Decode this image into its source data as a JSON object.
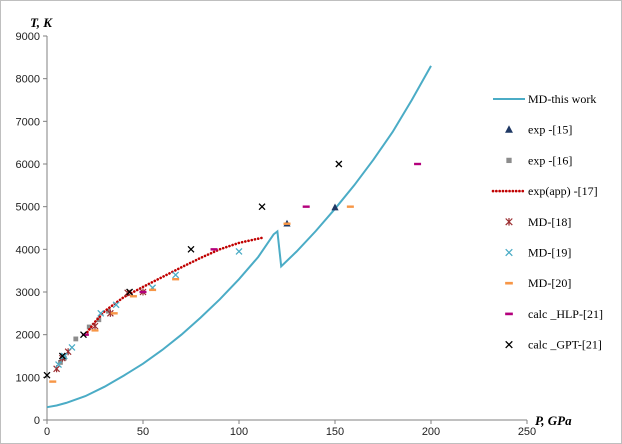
{
  "chart_data": {
    "type": "scatter",
    "xlabel": "P, GPa",
    "ylabel": "T, K",
    "xlim": [
      0,
      250
    ],
    "ylim": [
      0,
      9000
    ],
    "xticks": [
      0,
      50,
      100,
      150,
      200,
      250
    ],
    "yticks": [
      0,
      1000,
      2000,
      3000,
      4000,
      5000,
      6000,
      7000,
      8000,
      9000
    ],
    "grid": false,
    "legend_position": "right",
    "series": [
      {
        "name": "MD-this work",
        "kind": "line",
        "color": "#4bacc6",
        "points": [
          [
            0,
            300
          ],
          [
            5,
            340
          ],
          [
            10,
            400
          ],
          [
            20,
            560
          ],
          [
            30,
            780
          ],
          [
            40,
            1040
          ],
          [
            50,
            1320
          ],
          [
            60,
            1640
          ],
          [
            70,
            2000
          ],
          [
            80,
            2400
          ],
          [
            90,
            2830
          ],
          [
            100,
            3300
          ],
          [
            110,
            3820
          ],
          [
            118,
            4350
          ],
          [
            120,
            4420
          ],
          [
            122,
            3600
          ],
          [
            130,
            3950
          ],
          [
            140,
            4430
          ],
          [
            150,
            4950
          ],
          [
            160,
            5500
          ],
          [
            170,
            6100
          ],
          [
            180,
            6750
          ],
          [
            190,
            7500
          ],
          [
            200,
            8300
          ]
        ]
      },
      {
        "name": "exp  -[15]",
        "kind": "marker",
        "marker": "triangle",
        "color": "#1f3864",
        "points": [
          [
            125,
            4600
          ],
          [
            150,
            4980
          ]
        ]
      },
      {
        "name": "exp  -[16]",
        "kind": "marker",
        "marker": "square",
        "color": "#8c8c8c",
        "points": [
          [
            7,
            1350
          ],
          [
            9,
            1450
          ],
          [
            15,
            1900
          ],
          [
            22,
            2180
          ],
          [
            27,
            2350
          ],
          [
            32,
            2550
          ]
        ]
      },
      {
        "name": "exp(app)  -[17]",
        "kind": "dotted-line",
        "color": "#c00000",
        "points": [
          [
            20,
            2000
          ],
          [
            25,
            2300
          ],
          [
            30,
            2550
          ],
          [
            40,
            2880
          ],
          [
            50,
            3120
          ],
          [
            60,
            3350
          ],
          [
            70,
            3580
          ],
          [
            80,
            3800
          ],
          [
            90,
            4000
          ],
          [
            100,
            4150
          ],
          [
            113,
            4280
          ]
        ]
      },
      {
        "name": "MD-[18]",
        "kind": "marker",
        "marker": "star",
        "color": "#9b2d30",
        "points": [
          [
            5,
            1200
          ],
          [
            8,
            1450
          ],
          [
            11,
            1600
          ],
          [
            25,
            2200
          ],
          [
            33,
            2500
          ],
          [
            42,
            2980
          ],
          [
            50,
            3000
          ]
        ]
      },
      {
        "name": "MD-[19]",
        "kind": "marker",
        "marker": "x",
        "color": "#4bacc6",
        "points": [
          [
            6,
            1300
          ],
          [
            9,
            1500
          ],
          [
            13,
            1700
          ],
          [
            28,
            2500
          ],
          [
            36,
            2700
          ],
          [
            55,
            3100
          ],
          [
            67,
            3400
          ],
          [
            100,
            3950
          ]
        ]
      },
      {
        "name": "MD-[20]",
        "kind": "marker",
        "marker": "dash",
        "color": "#f79646",
        "points": [
          [
            3,
            900
          ],
          [
            25,
            2100
          ],
          [
            35,
            2500
          ],
          [
            45,
            2900
          ],
          [
            55,
            3050
          ],
          [
            67,
            3300
          ],
          [
            125,
            4600
          ],
          [
            158,
            5000
          ]
        ]
      },
      {
        "name": "calc _HLP-[21]",
        "kind": "marker",
        "marker": "dash",
        "color": "#b4007c",
        "points": [
          [
            20,
            2000
          ],
          [
            50,
            3000
          ],
          [
            87,
            4000
          ],
          [
            135,
            5000
          ],
          [
            193,
            6000
          ]
        ]
      },
      {
        "name": "calc _GPT-[21]",
        "kind": "marker",
        "marker": "x",
        "color": "#000000",
        "points": [
          [
            0,
            1050
          ],
          [
            8,
            1500
          ],
          [
            19,
            2000
          ],
          [
            43,
            3000
          ],
          [
            75,
            4000
          ],
          [
            112,
            5000
          ],
          [
            152,
            6000
          ]
        ]
      }
    ]
  }
}
